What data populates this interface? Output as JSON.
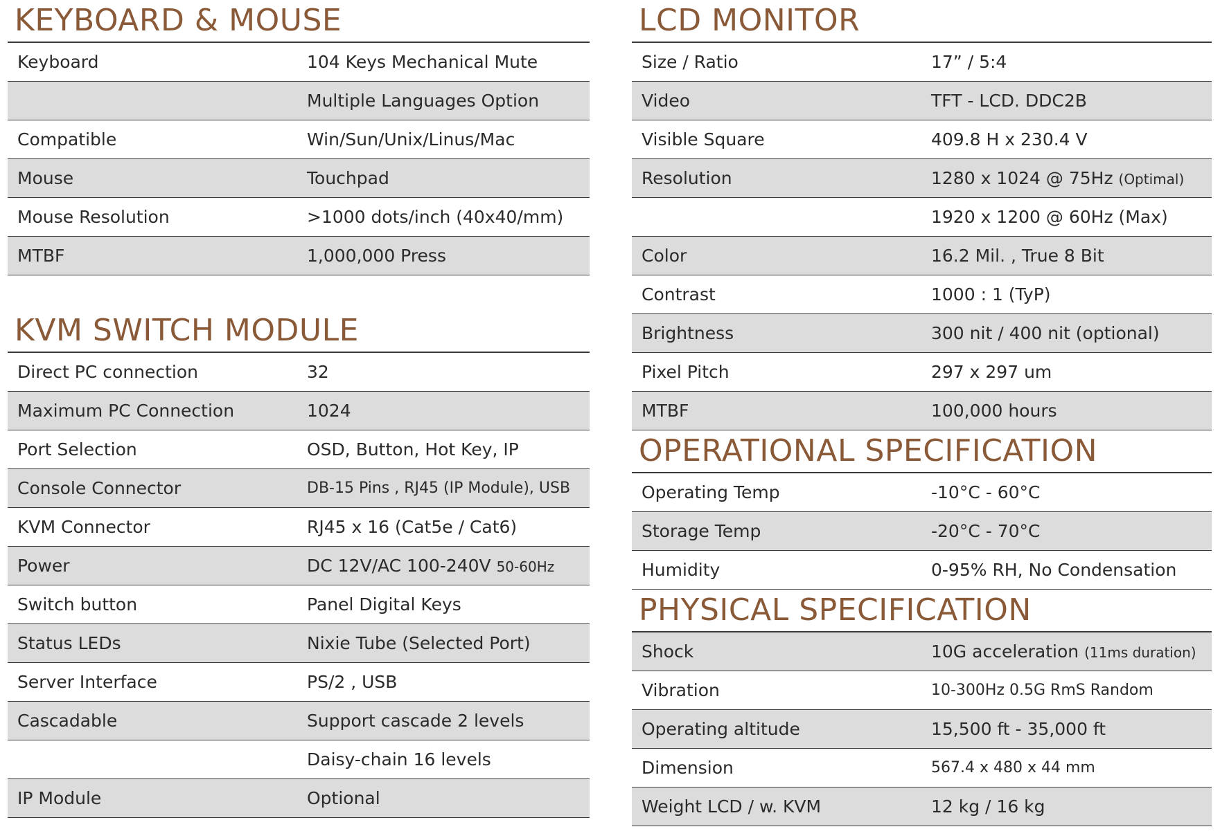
{
  "keyboard_mouse": {
    "title": "KEYBOARD & MOUSE",
    "rows": [
      {
        "key": "Keyboard",
        "value": "104 Keys Mechanical Mute"
      },
      {
        "key": "",
        "value": "Multiple Languages Option"
      },
      {
        "key": "Compatible",
        "value": "Win/Sun/Unix/Linus/Mac"
      },
      {
        "key": "Mouse",
        "value": "Touchpad"
      },
      {
        "key": "Mouse Resolution",
        "value": ">1000 dots/inch (40x40/mm)"
      },
      {
        "key": "MTBF",
        "value": "1,000,000 Press"
      }
    ]
  },
  "kvm_switch": {
    "title": "KVM SWITCH MODULE",
    "rows": [
      {
        "key": "Direct PC connection",
        "value": "32"
      },
      {
        "key": "Maximum PC Connection",
        "value": "1024"
      },
      {
        "key": "Port Selection",
        "value": "OSD, Button, Hot Key, IP"
      },
      {
        "key": "Console Connector",
        "value": "DB-15 Pins , RJ45 (IP Module), USB"
      },
      {
        "key": "KVM Connector",
        "value": "RJ45 x 16 (Cat5e / Cat6)"
      },
      {
        "key": "Power",
        "value": "DC 12V/AC 100-240V",
        "value_suffix": "50-60Hz"
      },
      {
        "key": "Switch button",
        "value": "Panel Digital Keys"
      },
      {
        "key": "Status LEDs",
        "value": "Nixie Tube (Selected Port)"
      },
      {
        "key": "Server Interface",
        "value": "PS/2 , USB"
      },
      {
        "key": "Cascadable",
        "value": "Support cascade 2 levels"
      },
      {
        "key": "",
        "value": "Daisy-chain 16 levels"
      },
      {
        "key": "IP Module",
        "value": "Optional"
      }
    ]
  },
  "lcd_monitor": {
    "title": "LCD MONITOR",
    "rows": [
      {
        "key": "Size / Ratio",
        "value": "17” / 5:4"
      },
      {
        "key": "Video",
        "value": "TFT - LCD. DDC2B"
      },
      {
        "key": "Visible Square",
        "value": "409.8 H x 230.4 V"
      },
      {
        "key": "Resolution",
        "value": "1280 x 1024 @ 75Hz",
        "value_suffix": "(Optimal)"
      },
      {
        "key": "",
        "value": "1920 x 1200 @ 60Hz (Max)"
      },
      {
        "key": "Color",
        "value": "16.2 Mil. , True 8 Bit"
      },
      {
        "key": "Contrast",
        "value": "1000 : 1 (TyP)"
      },
      {
        "key": "Brightness",
        "value": "300 nit / 400 nit (optional)"
      },
      {
        "key": "Pixel Pitch",
        "value": "297 x 297 um"
      },
      {
        "key": "MTBF",
        "value": "100,000 hours"
      }
    ]
  },
  "operational": {
    "title": "OPERATIONAL SPECIFICATION",
    "rows": [
      {
        "key": "Operating Temp",
        "value": "-10°C - 60°C"
      },
      {
        "key": "Storage Temp",
        "value": "-20°C - 70°C"
      },
      {
        "key": "Humidity",
        "value": "0-95% RH, No Condensation"
      }
    ]
  },
  "physical": {
    "title": "PHYSICAL SPECIFICATION",
    "rows": [
      {
        "key": "Shock",
        "value": "10G acceleration",
        "value_suffix": "(11ms duration)"
      },
      {
        "key": "Vibration",
        "value": "10-300Hz 0.5G RmS Random"
      },
      {
        "key": "Operating altitude",
        "value": "15,500 ft - 35,000 ft"
      },
      {
        "key": "Dimension",
        "value": "567.4 x 480 x 44 mm"
      },
      {
        "key": "Weight LCD / w. KVM",
        "value": "12 kg / 16 kg"
      }
    ]
  },
  "colors": {
    "title": "#8a5a38",
    "shade": "#dcdcdc",
    "rule": "#3a3a3a"
  }
}
